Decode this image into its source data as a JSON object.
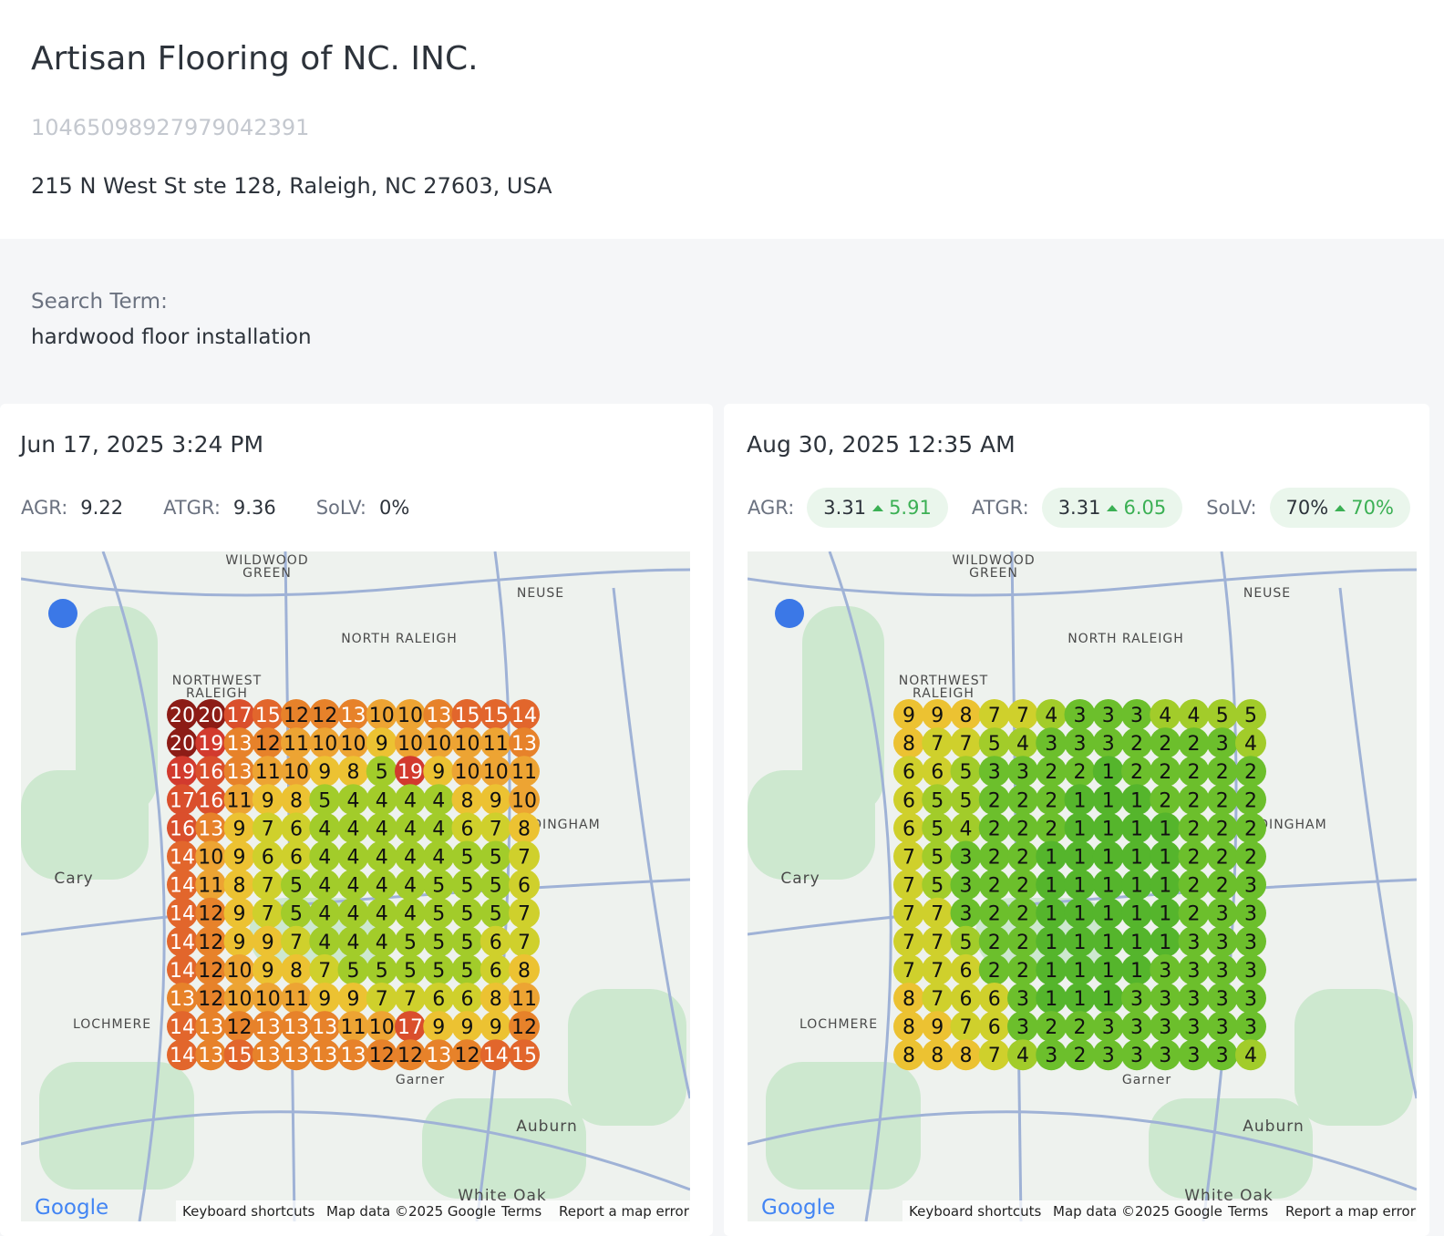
{
  "header": {
    "title": "Artisan Flooring of NC. INC.",
    "id": "10465098927979042391",
    "address": "215 N West St ste 128, Raleigh, NC 27603, USA"
  },
  "search": {
    "label": "Search Term:",
    "term": "hardwood floor installation"
  },
  "map_labels": [
    "NORTH RALEIGH",
    "NORTHWEST",
    "RALEIGH",
    "NEUSE",
    "WILDWOOD",
    "GREEN",
    "Cary",
    "LOCHMERE",
    "Auburn",
    "White Oak",
    "DINGHAM",
    "Garner"
  ],
  "map_footer": {
    "logo": "Google",
    "links": [
      "Keyboard shortcuts",
      "Map data ©2025 Google",
      "Terms",
      "Report a map error"
    ]
  },
  "scans": [
    {
      "date": "Jun 17, 2025 3:24 PM",
      "metrics": [
        {
          "label": "AGR:",
          "value": 9.22
        },
        {
          "label": "ATGR:",
          "value": 9.36
        },
        {
          "label": "SoLV:",
          "value": "0%"
        }
      ],
      "grid": [
        [
          20,
          20,
          17,
          15,
          12,
          12,
          13,
          10,
          10,
          13,
          15,
          15,
          14
        ],
        [
          20,
          19,
          13,
          12,
          11,
          10,
          10,
          9,
          10,
          10,
          10,
          11,
          13
        ],
        [
          19,
          16,
          13,
          11,
          10,
          9,
          8,
          5,
          19,
          9,
          10,
          10,
          11
        ],
        [
          17,
          16,
          11,
          9,
          8,
          5,
          4,
          4,
          4,
          4,
          8,
          9,
          10
        ],
        [
          16,
          13,
          9,
          7,
          6,
          4,
          4,
          4,
          4,
          4,
          6,
          7,
          8
        ],
        [
          14,
          10,
          9,
          6,
          6,
          4,
          4,
          4,
          4,
          4,
          5,
          5,
          7
        ],
        [
          14,
          11,
          8,
          7,
          5,
          4,
          4,
          4,
          4,
          5,
          5,
          5,
          6
        ],
        [
          14,
          12,
          9,
          7,
          5,
          4,
          4,
          4,
          4,
          5,
          5,
          5,
          7
        ],
        [
          14,
          12,
          9,
          9,
          7,
          4,
          4,
          4,
          5,
          5,
          5,
          6,
          7
        ],
        [
          14,
          12,
          10,
          9,
          8,
          7,
          5,
          5,
          5,
          5,
          5,
          6,
          8
        ],
        [
          13,
          12,
          10,
          10,
          11,
          9,
          9,
          7,
          7,
          6,
          6,
          8,
          11
        ],
        [
          14,
          13,
          12,
          13,
          13,
          13,
          11,
          10,
          17,
          9,
          9,
          9,
          12
        ],
        [
          14,
          13,
          15,
          13,
          13,
          13,
          13,
          12,
          12,
          13,
          12,
          14,
          15
        ]
      ]
    },
    {
      "date": "Aug 30, 2025 12:35 AM",
      "metrics": [
        {
          "label": "AGR:",
          "value": 3.31,
          "change": 5.91
        },
        {
          "label": "ATGR:",
          "value": 3.31,
          "change": 6.05
        },
        {
          "label": "SoLV:",
          "value": "70%",
          "change": "70%"
        }
      ],
      "grid": [
        [
          9,
          9,
          8,
          7,
          7,
          4,
          3,
          3,
          3,
          4,
          4,
          5,
          5
        ],
        [
          8,
          7,
          7,
          5,
          4,
          3,
          3,
          3,
          2,
          2,
          2,
          3,
          4
        ],
        [
          6,
          6,
          5,
          3,
          3,
          2,
          2,
          1,
          2,
          2,
          2,
          2,
          2
        ],
        [
          6,
          5,
          5,
          2,
          2,
          2,
          1,
          1,
          1,
          2,
          2,
          2,
          2
        ],
        [
          6,
          5,
          4,
          2,
          2,
          2,
          1,
          1,
          1,
          1,
          2,
          2,
          2
        ],
        [
          7,
          5,
          3,
          2,
          2,
          1,
          1,
          1,
          1,
          1,
          2,
          2,
          2
        ],
        [
          7,
          5,
          3,
          2,
          2,
          1,
          1,
          1,
          1,
          1,
          2,
          2,
          3
        ],
        [
          7,
          7,
          3,
          2,
          2,
          1,
          1,
          1,
          1,
          1,
          2,
          3,
          3
        ],
        [
          7,
          7,
          5,
          2,
          2,
          1,
          1,
          1,
          1,
          1,
          3,
          3,
          3
        ],
        [
          7,
          7,
          6,
          2,
          2,
          1,
          1,
          1,
          1,
          3,
          3,
          3,
          3
        ],
        [
          8,
          7,
          6,
          6,
          3,
          1,
          1,
          1,
          3,
          3,
          3,
          3,
          3
        ],
        [
          8,
          9,
          7,
          6,
          3,
          2,
          2,
          3,
          3,
          3,
          3,
          3,
          3
        ],
        [
          8,
          8,
          8,
          7,
          4,
          3,
          2,
          3,
          3,
          3,
          3,
          3,
          4
        ]
      ]
    }
  ]
}
